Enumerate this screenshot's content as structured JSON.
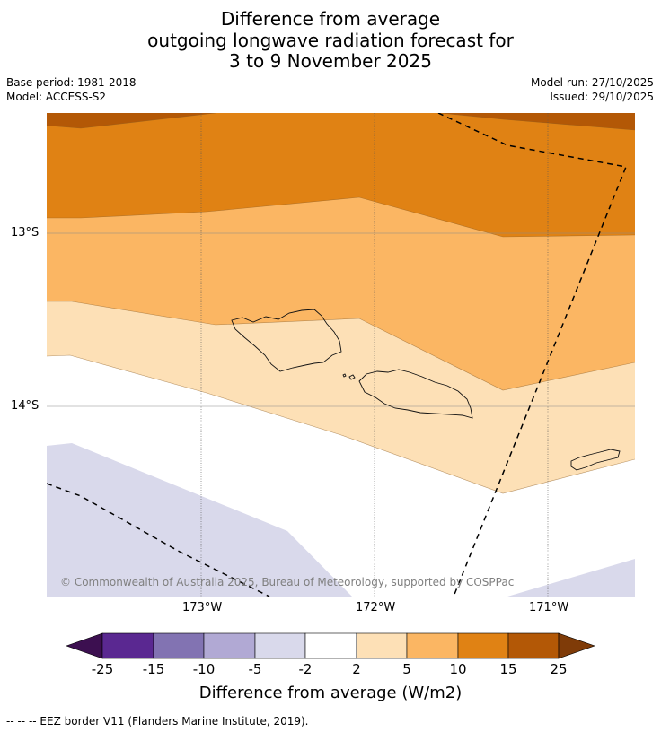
{
  "title": {
    "line1": "Difference from average",
    "line2": "outgoing longwave radiation forecast for",
    "line3": "3 to 9 November 2025"
  },
  "meta": {
    "base_period": "Base period: 1981-2018",
    "model": "Model: ACCESS-S2",
    "model_run": "Model run: 27/10/2025",
    "issued": "Issued: 29/10/2025"
  },
  "map": {
    "latitude_labels": [
      "13°S",
      "14°S"
    ],
    "longitude_labels": [
      "173°W",
      "172°W",
      "171°W"
    ],
    "copyright": "© Commonwealth of Australia 2025, Bureau of Meteorology, supported by COSPPac"
  },
  "colorbar": {
    "title": "Difference from average (W/m2)",
    "tick_labels": [
      "-25",
      "-15",
      "-10",
      "-5",
      "-2",
      "2",
      "5",
      "10",
      "15",
      "25"
    ],
    "colors": [
      "#3c0f50",
      "#5a2891",
      "#8273b2",
      "#b1a9d4",
      "#d9d9eb",
      "#ffffff",
      "#fde0b6",
      "#fbb663",
      "#e08214",
      "#b35806",
      "#7f3b08"
    ]
  },
  "footer": "--  --  -- EEZ border V11 (Flanders Marine Institute, 2019)."
}
